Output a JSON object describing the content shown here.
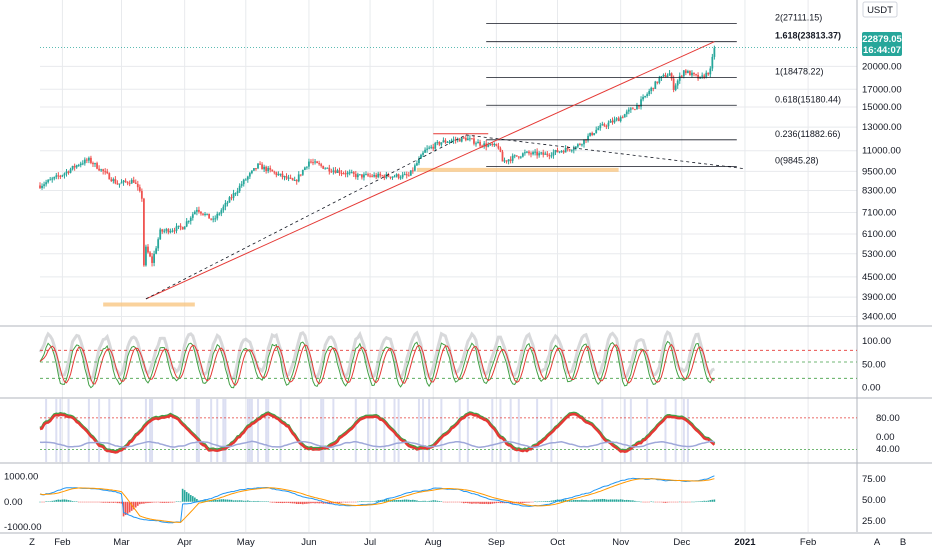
{
  "currency": "USDT",
  "price_tag": {
    "value": "22879.05",
    "countdown": "16:44:07",
    "color": "#26a69a"
  },
  "bottom_bar": {
    "left_letter": "Z",
    "auto_letter": "A",
    "log_letter": "B"
  },
  "colors": {
    "up": "#26a69a",
    "down": "#ef5350",
    "grid": "#e8eaed",
    "fib": "#131722",
    "trend": "#e53935",
    "support": "#f9c784"
  },
  "chart_data": [
    {
      "type": "candlestick",
      "y_axis_scale": "log",
      "ylim": [
        3200,
        32000
      ],
      "y_ticks": [
        "3400.00",
        "3900.00",
        "4500.00",
        "5300.00",
        "6100.00",
        "7100.00",
        "8300.00",
        "9500.00",
        "11000.00",
        "13000.00",
        "15000.00",
        "17000.00",
        "20000.00"
      ],
      "x_ticks": [
        "Feb",
        "Mar",
        "Apr",
        "May",
        "Jun",
        "Jul",
        "Aug",
        "Sep",
        "Oct",
        "Nov",
        "Dec",
        "2021",
        "Feb"
      ],
      "x_range": [
        "2020-01-21",
        "2021-02-25"
      ],
      "close_path": [
        [
          "2020-01-21",
          8600
        ],
        [
          "2020-02-01",
          9300
        ],
        [
          "2020-02-10",
          10100
        ],
        [
          "2020-02-14",
          10300
        ],
        [
          "2020-02-20",
          9600
        ],
        [
          "2020-02-28",
          8700
        ],
        [
          "2020-03-07",
          8900
        ],
        [
          "2020-03-11",
          7900
        ],
        [
          "2020-03-12",
          4900
        ],
        [
          "2020-03-13",
          5500
        ],
        [
          "2020-03-16",
          5000
        ],
        [
          "2020-03-20",
          6200
        ],
        [
          "2020-03-31",
          6400
        ],
        [
          "2020-04-07",
          7300
        ],
        [
          "2020-04-15",
          6700
        ],
        [
          "2020-04-29",
          8700
        ],
        [
          "2020-05-07",
          9900
        ],
        [
          "2020-05-15",
          9400
        ],
        [
          "2020-05-25",
          8800
        ],
        [
          "2020-06-01",
          10200
        ],
        [
          "2020-06-10",
          9700
        ],
        [
          "2020-06-25",
          9200
        ],
        [
          "2020-07-10",
          9200
        ],
        [
          "2020-07-20",
          9200
        ],
        [
          "2020-07-28",
          11000
        ],
        [
          "2020-08-05",
          11700
        ],
        [
          "2020-08-17",
          12000
        ],
        [
          "2020-08-25",
          11500
        ],
        [
          "2020-09-02",
          11300
        ],
        [
          "2020-09-04",
          10200
        ],
        [
          "2020-09-15",
          10800
        ],
        [
          "2020-09-25",
          10700
        ],
        [
          "2020-10-10",
          11300
        ],
        [
          "2020-10-21",
          12900
        ],
        [
          "2020-10-31",
          13800
        ],
        [
          "2020-11-10",
          15300
        ],
        [
          "2020-11-20",
          18300
        ],
        [
          "2020-11-25",
          19000
        ],
        [
          "2020-11-27",
          17200
        ],
        [
          "2020-12-02",
          19400
        ],
        [
          "2020-12-10",
          18300
        ],
        [
          "2020-12-15",
          19400
        ],
        [
          "2020-12-17",
          22900
        ]
      ],
      "fib_levels": [
        {
          "label": "2(27111.15)",
          "value": 27111.15
        },
        {
          "label": "1.618(23813.37)",
          "value": 23813.37
        },
        {
          "label": "1(18478.22)",
          "value": 18478.22
        },
        {
          "label": "0.618(15180.44)",
          "value": 15180.44
        },
        {
          "label": "0.236(11882.66)",
          "value": 11882.66
        },
        {
          "label": "0(9845.28)",
          "value": 9845.28
        }
      ],
      "trendlines": [
        {
          "kind": "resistance",
          "from": [
            "2020-08-01",
            12400
          ],
          "to": [
            "2020-08-28",
            12400
          ]
        },
        {
          "kind": "support",
          "from": [
            "2020-07-24",
            9600
          ],
          "to": [
            "2020-10-31",
            9600
          ]
        },
        {
          "kind": "support",
          "from": [
            "2020-02-21",
            3700
          ],
          "to": [
            "2020-04-06",
            3700
          ]
        },
        {
          "kind": "rising",
          "from": [
            "2020-03-13",
            3850
          ],
          "to": [
            "2020-12-17",
            23813
          ]
        },
        {
          "kind": "dashed",
          "from": [
            "2020-03-13",
            3850
          ],
          "to": [
            "2020-08-17",
            12300
          ]
        },
        {
          "kind": "dashed",
          "from": [
            "2020-08-17",
            12300
          ],
          "to": [
            "2020-12-31",
            9700
          ]
        }
      ]
    },
    {
      "type": "line",
      "name": "stoch-rsi",
      "ylim": [
        -20,
        130
      ],
      "y_ticks": [
        "100.00",
        "50.00",
        "0.00"
      ],
      "levels": [
        80,
        55,
        20
      ]
    },
    {
      "type": "line",
      "name": "rsi",
      "ylim": [
        10,
        110
      ],
      "y_ticks": [
        "80.00",
        "0.00",
        "40.00"
      ],
      "levels": [
        80,
        30
      ]
    },
    {
      "type": "line",
      "name": "macd",
      "ylim_left": [
        -1200,
        1500
      ],
      "y_ticks_left": [
        "1000.00",
        "0.00",
        "-1000.00"
      ],
      "y_ticks_right": [
        "75.00",
        "50.00",
        "25.00"
      ]
    }
  ]
}
